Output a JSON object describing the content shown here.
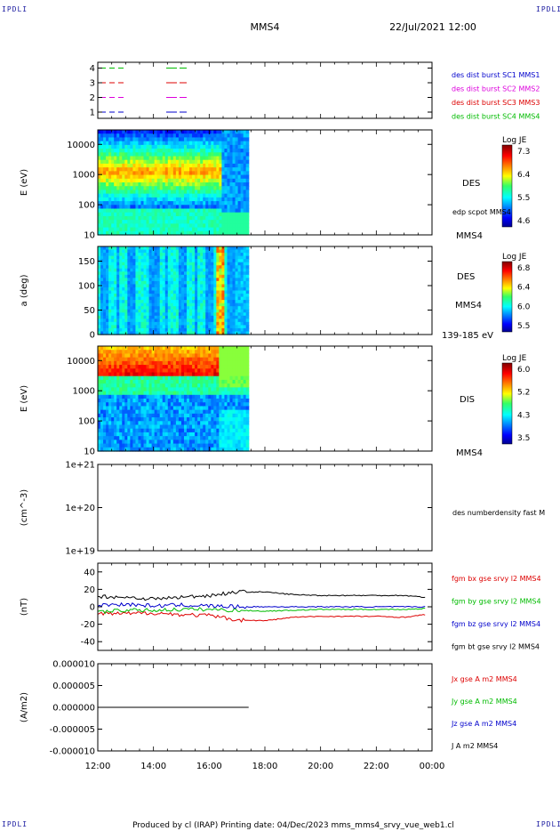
{
  "header": {
    "corner_label": "IPDLI",
    "title": "MMS4",
    "date": "22/Jul/2021 12:00"
  },
  "footer": {
    "text": "Produced by cl (IRAP)   Printing date: 04/Dec/2023   mms_mms4_srvy_vue_web1.cl"
  },
  "x_axis": {
    "ticks": [
      "12:00",
      "14:00",
      "16:00",
      "18:00",
      "20:00",
      "22:00",
      "00:00"
    ],
    "data_start": "12:00",
    "data_end": "17:25"
  },
  "colors": {
    "blue": "#0000cc",
    "magenta": "#dd00dd",
    "red": "#dd0000",
    "green": "#00bb00",
    "black": "#000000"
  },
  "chart_data": [
    {
      "type": "line",
      "id": "status",
      "ylim": [
        0.5,
        4.5
      ],
      "yticks": [
        "1",
        "2",
        "3",
        "4"
      ],
      "series": [
        {
          "name": "des dist burst SC1 MMS1",
          "color": "#0000cc",
          "level": 1
        },
        {
          "name": "des dist burst SC2 MMS2",
          "color": "#dd00dd",
          "level": 2
        },
        {
          "name": "des dist burst SC3 MMS3",
          "color": "#dd0000",
          "level": 3
        },
        {
          "name": "des dist burst SC4 MMS4",
          "color": "#00bb00",
          "level": 4
        }
      ]
    },
    {
      "type": "heatmap",
      "id": "des_energy",
      "ylabel": "E (eV)",
      "yscale": "log",
      "yticks": [
        "10",
        "100",
        "1000",
        "10000"
      ],
      "ylim": [
        10,
        30000
      ],
      "labels": [
        "DES",
        "edp scpot MMS4",
        "MMS4"
      ],
      "colorbar": {
        "title": "Log JE",
        "ticks": [
          "7.3",
          "6.4",
          "5.5",
          "4.6"
        ]
      }
    },
    {
      "type": "heatmap",
      "id": "des_pitch",
      "ylabel": "a (deg)",
      "yticks": [
        "0",
        "50",
        "100",
        "150"
      ],
      "ylim": [
        0,
        180
      ],
      "labels": [
        "DES",
        "MMS4",
        "139-185 eV"
      ],
      "colorbar": {
        "title": "Log JE",
        "ticks": [
          "6.8",
          "6.4",
          "6.0",
          "5.5"
        ]
      }
    },
    {
      "type": "heatmap",
      "id": "dis_energy",
      "ylabel": "E (eV)",
      "yscale": "log",
      "yticks": [
        "10",
        "100",
        "1000",
        "10000"
      ],
      "ylim": [
        10,
        30000
      ],
      "labels": [
        "DIS",
        "MMS4"
      ],
      "colorbar": {
        "title": "Log JE",
        "ticks": [
          "6.0",
          "5.2",
          "4.3",
          "3.5"
        ]
      }
    },
    {
      "type": "line",
      "id": "density",
      "ylabel": "(cm^-3)",
      "yscale": "log",
      "yticks": [
        "1e+19",
        "1e+20",
        "1e+21"
      ],
      "series": [
        {
          "name": "des numberdensity fast M",
          "color": "#000000",
          "values": []
        }
      ]
    },
    {
      "type": "line",
      "id": "bfield",
      "ylabel": "(nT)",
      "ylim": [
        -50,
        50
      ],
      "yticks": [
        "-40",
        "-20",
        "0",
        "20",
        "40"
      ],
      "series": [
        {
          "name": "fgm bx gse srvy l2 MMS4",
          "color": "#dd0000",
          "t": [
            "12:00",
            "13:00",
            "14:00",
            "15:00",
            "16:00",
            "17:00",
            "18:00",
            "19:00",
            "20:00",
            "21:00",
            "22:00",
            "23:00",
            "23:45"
          ],
          "values": [
            -8,
            -8,
            -7,
            -9,
            -10,
            -15,
            -16,
            -12,
            -11,
            -11,
            -11,
            -12,
            -9
          ]
        },
        {
          "name": "fgm by gse srvy l2 MMS4",
          "color": "#00bb00",
          "t": [
            "12:00",
            "13:00",
            "14:00",
            "15:00",
            "16:00",
            "17:00",
            "18:00",
            "19:00",
            "20:00",
            "21:00",
            "22:00",
            "23:00",
            "23:45"
          ],
          "values": [
            -6,
            -4,
            -4,
            -3,
            -3,
            -4,
            -5,
            -4,
            -3,
            -3,
            -3,
            -3,
            -2
          ]
        },
        {
          "name": "fgm bz gse srvy l2 MMS4",
          "color": "#0000cc",
          "t": [
            "12:00",
            "13:00",
            "14:00",
            "15:00",
            "16:00",
            "17:00",
            "18:00",
            "19:00",
            "20:00",
            "21:00",
            "22:00",
            "23:00",
            "23:45"
          ],
          "values": [
            2,
            3,
            1,
            2,
            1,
            0,
            0,
            0,
            0,
            0,
            0,
            0,
            0
          ]
        },
        {
          "name": "fgm bt gse srvy l2 MMS4",
          "color": "#000000",
          "t": [
            "12:00",
            "13:00",
            "14:00",
            "15:00",
            "16:00",
            "17:00",
            "18:00",
            "19:00",
            "20:00",
            "21:00",
            "22:00",
            "23:00",
            "23:45"
          ],
          "values": [
            12,
            11,
            9,
            11,
            13,
            17,
            17,
            14,
            13,
            13,
            13,
            13,
            11
          ]
        }
      ]
    },
    {
      "type": "line",
      "id": "current",
      "ylabel": "(A/m2)",
      "ylim": [
        -1e-05,
        1e-05
      ],
      "yticks": [
        "-0.000010",
        "-0.000005",
        "0.000000",
        "0.000005",
        "0.000010"
      ],
      "series": [
        {
          "name": "Jx gse A m2 MMS4",
          "color": "#dd0000"
        },
        {
          "name": "Jy gse A m2 MMS4",
          "color": "#00bb00"
        },
        {
          "name": "Jz gse A m2 MMS4",
          "color": "#0000cc"
        },
        {
          "name": "J A m2 MMS4",
          "color": "#000000",
          "t": [
            "12:00",
            "17:25"
          ],
          "values": [
            0,
            0
          ]
        }
      ]
    }
  ]
}
